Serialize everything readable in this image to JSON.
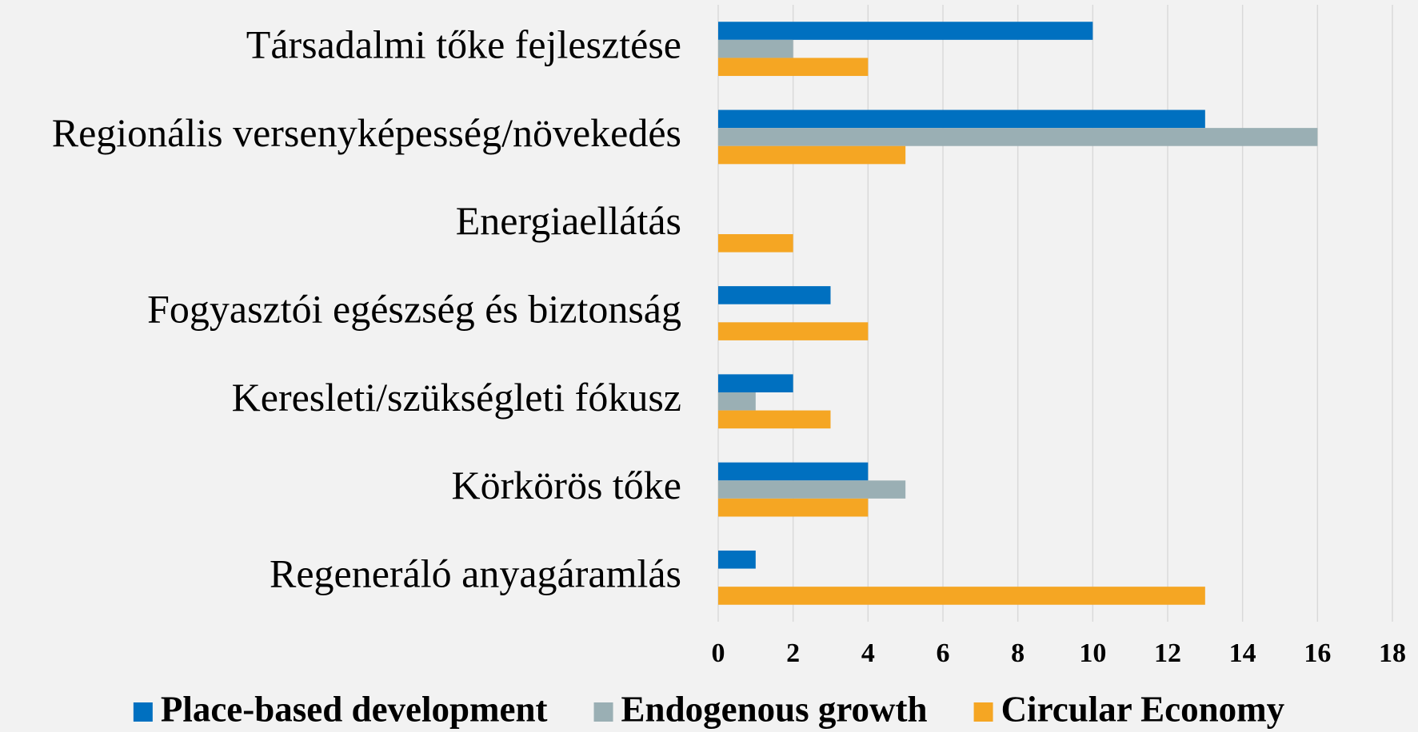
{
  "chart_data": {
    "type": "bar",
    "orientation": "horizontal",
    "categories": [
      "Társadalmi tőke fejlesztése",
      "Regionális versenyképesség/növekedés",
      "Energiaellátás",
      "Fogyasztói egészség és biztonság",
      "Keresleti/szükségleti fókusz",
      "Körkörös tőke",
      "Regeneráló anyagáramlás"
    ],
    "series": [
      {
        "name": "Place-based development",
        "color": "#0070c0",
        "values": [
          10,
          13,
          0,
          3,
          2,
          4,
          1
        ]
      },
      {
        "name": "Endogenous growth",
        "color": "#9aafb4",
        "values": [
          2,
          16,
          0,
          0,
          1,
          5,
          0
        ]
      },
      {
        "name": "Circular Economy",
        "color": "#f5a623",
        "values": [
          4,
          5,
          2,
          4,
          3,
          4,
          13
        ]
      }
    ],
    "xlim": [
      0,
      18
    ],
    "xticks": [
      0,
      2,
      4,
      6,
      8,
      10,
      12,
      14,
      16,
      18
    ],
    "grid": true,
    "legend": "bottom"
  }
}
